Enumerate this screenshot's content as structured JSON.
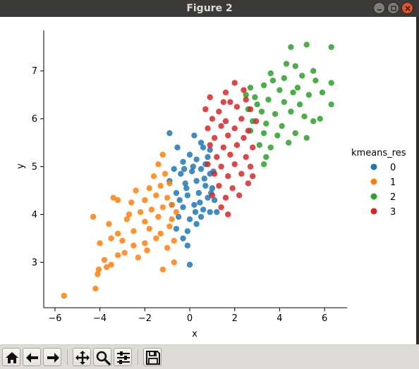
{
  "window": {
    "title": "Figure 2"
  },
  "window_buttons": [
    {
      "name": "minimize-button",
      "icon": "minimize-icon"
    },
    {
      "name": "maximize-button",
      "icon": "maximize-icon"
    },
    {
      "name": "close-button",
      "icon": "close-icon"
    }
  ],
  "toolbar": {
    "buttons": [
      {
        "name": "home-button",
        "icon": "home-icon"
      },
      {
        "name": "back-button",
        "icon": "arrow-left-icon"
      },
      {
        "name": "forward-button",
        "icon": "arrow-right-icon"
      },
      {
        "name": "pan-button",
        "icon": "move-icon"
      },
      {
        "name": "zoom-button",
        "icon": "magnifier-icon"
      },
      {
        "name": "configure-subplots-button",
        "icon": "sliders-icon"
      },
      {
        "name": "save-button",
        "icon": "floppy-disk-icon"
      }
    ]
  },
  "chart_data": {
    "type": "scatter",
    "title": "",
    "xlabel": "x",
    "ylabel": "y",
    "xlim": [
      -6.5,
      7
    ],
    "ylim": [
      2.05,
      7.85
    ],
    "xticks": [
      -6,
      -4,
      -2,
      0,
      2,
      4,
      6
    ],
    "yticks": [
      3,
      4,
      5,
      6,
      7
    ],
    "grid": false,
    "legend": {
      "title": "kmeans_res",
      "placement": "right"
    },
    "series": [
      {
        "name": "0",
        "color": "#1f77b4",
        "points": [
          [
            -0.9,
            5.7
          ],
          [
            0.2,
            5.65
          ],
          [
            -0.55,
            5.4
          ],
          [
            0.0,
            5.25
          ],
          [
            0.5,
            5.5
          ],
          [
            0.6,
            5.4
          ],
          [
            0.9,
            5.35
          ],
          [
            -0.3,
            5.1
          ],
          [
            0.3,
            5.15
          ],
          [
            0.8,
            5.2
          ],
          [
            -0.7,
            4.95
          ],
          [
            -0.4,
            4.85
          ],
          [
            0.1,
            4.9
          ],
          [
            0.5,
            4.95
          ],
          [
            0.9,
            4.85
          ],
          [
            -0.9,
            4.7
          ],
          [
            -0.2,
            4.65
          ],
          [
            0.3,
            4.7
          ],
          [
            0.7,
            4.6
          ],
          [
            1.0,
            4.55
          ],
          [
            -0.6,
            4.45
          ],
          [
            -0.1,
            4.4
          ],
          [
            0.4,
            4.45
          ],
          [
            0.8,
            4.35
          ],
          [
            1.1,
            4.3
          ],
          [
            -0.8,
            4.2
          ],
          [
            -0.3,
            4.15
          ],
          [
            0.2,
            4.2
          ],
          [
            0.6,
            4.1
          ],
          [
            0.9,
            4.05
          ],
          [
            1.2,
            4.05
          ],
          [
            -0.5,
            3.95
          ],
          [
            0.0,
            3.9
          ],
          [
            0.5,
            3.95
          ],
          [
            -0.6,
            3.7
          ],
          [
            -0.1,
            3.65
          ],
          [
            0.3,
            3.8
          ],
          [
            -0.3,
            3.5
          ],
          [
            -0.1,
            3.35
          ],
          [
            0.0,
            2.95
          ],
          [
            0.15,
            5.0
          ],
          [
            -0.15,
            4.55
          ],
          [
            0.45,
            4.25
          ],
          [
            0.7,
            5.05
          ],
          [
            -0.45,
            4.3
          ],
          [
            0.25,
            4.05
          ],
          [
            0.65,
            4.75
          ],
          [
            -0.25,
            4.95
          ],
          [
            0.95,
            4.45
          ],
          [
            1.05,
            4.9
          ]
        ]
      },
      {
        "name": "1",
        "color": "#ff7f0e",
        "points": [
          [
            -5.6,
            2.3
          ],
          [
            -4.2,
            2.45
          ],
          [
            -4.1,
            2.75
          ],
          [
            -4.05,
            2.85
          ],
          [
            -3.7,
            2.9
          ],
          [
            -3.5,
            2.95
          ],
          [
            -3.8,
            3.05
          ],
          [
            -3.2,
            3.15
          ],
          [
            -2.9,
            3.2
          ],
          [
            -4.0,
            3.4
          ],
          [
            -3.5,
            3.5
          ],
          [
            -3.0,
            3.45
          ],
          [
            -2.5,
            3.35
          ],
          [
            -2.0,
            3.4
          ],
          [
            -1.5,
            3.5
          ],
          [
            -1.0,
            3.3
          ],
          [
            -0.7,
            3.45
          ],
          [
            -3.2,
            3.6
          ],
          [
            -2.5,
            3.65
          ],
          [
            -1.8,
            3.7
          ],
          [
            -1.3,
            3.6
          ],
          [
            -0.9,
            3.75
          ],
          [
            -3.6,
            3.8
          ],
          [
            -2.8,
            3.9
          ],
          [
            -2.0,
            3.85
          ],
          [
            -1.4,
            3.95
          ],
          [
            -0.8,
            3.9
          ],
          [
            -2.2,
            4.05
          ],
          [
            -1.7,
            4.1
          ],
          [
            -1.2,
            4.15
          ],
          [
            -0.8,
            4.2
          ],
          [
            -3.2,
            4.3
          ],
          [
            -2.6,
            4.25
          ],
          [
            -2.0,
            4.3
          ],
          [
            -1.5,
            4.4
          ],
          [
            -1.0,
            4.35
          ],
          [
            -2.4,
            4.5
          ],
          [
            -1.8,
            4.55
          ],
          [
            -1.3,
            4.6
          ],
          [
            -0.9,
            4.65
          ],
          [
            -1.6,
            4.8
          ],
          [
            -1.1,
            4.85
          ],
          [
            -1.4,
            5.05
          ],
          [
            -1.2,
            5.25
          ],
          [
            -4.3,
            3.95
          ],
          [
            -3.4,
            4.35
          ],
          [
            -2.7,
            4.0
          ],
          [
            -1.9,
            3.25
          ],
          [
            -1.2,
            2.85
          ],
          [
            -0.6,
            4.05
          ],
          [
            -2.3,
            3.1
          ],
          [
            -0.7,
            3.0
          ]
        ]
      },
      {
        "name": "2",
        "color": "#2ca02c",
        "points": [
          [
            4.5,
            7.5
          ],
          [
            5.2,
            7.55
          ],
          [
            6.3,
            7.5
          ],
          [
            4.3,
            7.15
          ],
          [
            4.7,
            7.1
          ],
          [
            5.5,
            7.0
          ],
          [
            3.6,
            6.95
          ],
          [
            4.2,
            6.85
          ],
          [
            5.0,
            6.9
          ],
          [
            5.6,
            6.8
          ],
          [
            6.3,
            6.75
          ],
          [
            2.7,
            6.65
          ],
          [
            3.3,
            6.7
          ],
          [
            4.0,
            6.6
          ],
          [
            4.6,
            6.55
          ],
          [
            5.3,
            6.5
          ],
          [
            2.9,
            6.45
          ],
          [
            3.5,
            6.4
          ],
          [
            4.2,
            6.35
          ],
          [
            4.9,
            6.3
          ],
          [
            6.3,
            6.3
          ],
          [
            2.6,
            6.2
          ],
          [
            3.2,
            6.15
          ],
          [
            3.8,
            6.1
          ],
          [
            4.5,
            6.15
          ],
          [
            5.1,
            6.05
          ],
          [
            2.8,
            5.95
          ],
          [
            3.4,
            5.9
          ],
          [
            4.1,
            5.85
          ],
          [
            5.5,
            5.95
          ],
          [
            5.8,
            6.0
          ],
          [
            2.7,
            5.75
          ],
          [
            3.3,
            5.7
          ],
          [
            3.9,
            5.65
          ],
          [
            4.7,
            5.7
          ],
          [
            5.2,
            5.6
          ],
          [
            3.1,
            5.45
          ],
          [
            3.6,
            5.4
          ],
          [
            4.4,
            5.5
          ],
          [
            3.4,
            5.2
          ],
          [
            3.3,
            5.05
          ],
          [
            3.7,
            6.8
          ],
          [
            4.8,
            6.65
          ],
          [
            2.5,
            6.5
          ],
          [
            5.9,
            6.55
          ],
          [
            3.0,
            6.3
          ]
        ]
      },
      {
        "name": "3",
        "color": "#d62728",
        "points": [
          [
            2.0,
            6.75
          ],
          [
            1.6,
            6.55
          ],
          [
            2.4,
            6.6
          ],
          [
            0.9,
            6.45
          ],
          [
            1.8,
            6.35
          ],
          [
            2.5,
            6.4
          ],
          [
            0.7,
            6.2
          ],
          [
            1.3,
            6.15
          ],
          [
            2.1,
            6.25
          ],
          [
            2.7,
            6.2
          ],
          [
            1.0,
            6.0
          ],
          [
            1.6,
            5.95
          ],
          [
            2.3,
            6.0
          ],
          [
            0.8,
            5.8
          ],
          [
            1.4,
            5.85
          ],
          [
            2.0,
            5.8
          ],
          [
            2.6,
            5.75
          ],
          [
            1.1,
            5.6
          ],
          [
            1.7,
            5.65
          ],
          [
            2.4,
            5.6
          ],
          [
            0.9,
            5.45
          ],
          [
            1.5,
            5.4
          ],
          [
            2.1,
            5.45
          ],
          [
            2.8,
            5.4
          ],
          [
            1.2,
            5.2
          ],
          [
            1.8,
            5.25
          ],
          [
            2.5,
            5.2
          ],
          [
            0.8,
            5.05
          ],
          [
            1.4,
            5.0
          ],
          [
            2.0,
            5.05
          ],
          [
            2.7,
            5.0
          ],
          [
            1.1,
            4.85
          ],
          [
            1.7,
            4.8
          ],
          [
            2.3,
            4.85
          ],
          [
            1.3,
            4.6
          ],
          [
            1.9,
            4.55
          ],
          [
            2.6,
            4.65
          ],
          [
            1.0,
            4.4
          ],
          [
            1.6,
            4.35
          ],
          [
            2.2,
            4.4
          ],
          [
            1.4,
            4.15
          ],
          [
            1.7,
            4.0
          ],
          [
            2.8,
            4.8
          ],
          [
            1.5,
            6.35
          ],
          [
            2.95,
            5.95
          ]
        ]
      }
    ]
  }
}
